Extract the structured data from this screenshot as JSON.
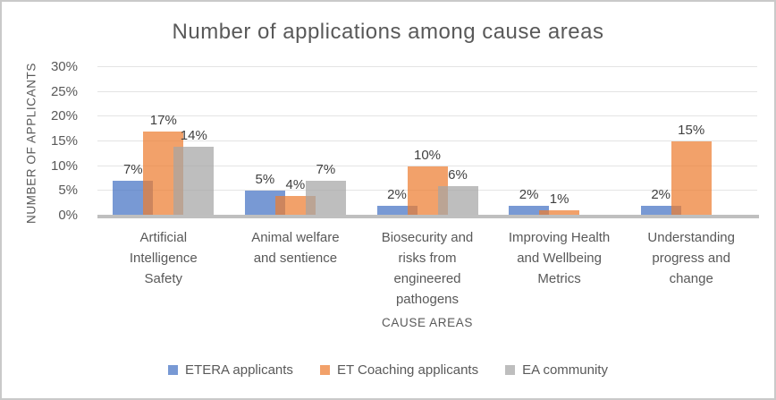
{
  "chart_data": {
    "type": "bar",
    "title": "Number of applications among cause areas",
    "xlabel": "CAUSE AREAS",
    "ylabel": "NUMBER OF APPLICANTS",
    "categories": [
      "Artificial\nIntelligence\nSafety",
      "Animal welfare\nand sentience",
      "Biosecurity and\nrisks from\nengineered\npathogens",
      "Improving Health\nand Wellbeing\nMetrics",
      "Understanding\nprogress and\nchange"
    ],
    "series": [
      {
        "name": "ETERA applicants",
        "color": "#4472C4",
        "values": [
          7,
          5,
          2,
          2,
          2
        ]
      },
      {
        "name": "ET Coaching applicants",
        "color": "#ED7D31",
        "values": [
          17,
          4,
          10,
          1,
          15
        ]
      },
      {
        "name": "EA community",
        "color": "#A5A5A5",
        "values": [
          14,
          7,
          6,
          null,
          null
        ]
      }
    ],
    "value_suffix": "%",
    "ylim": [
      0,
      30
    ],
    "ytick_step": 5,
    "yticks": [
      "0%",
      "5%",
      "10%",
      "15%",
      "20%",
      "25%",
      "30%"
    ],
    "grid": true,
    "legend_position": "bottom",
    "bar_opacity": 0.72,
    "colors": {
      "title_text": "#595959",
      "axis_text": "#595959",
      "data_label_text": "#404040",
      "gridline": "#e4e4e4",
      "baseline": "#bfbfbf"
    }
  }
}
